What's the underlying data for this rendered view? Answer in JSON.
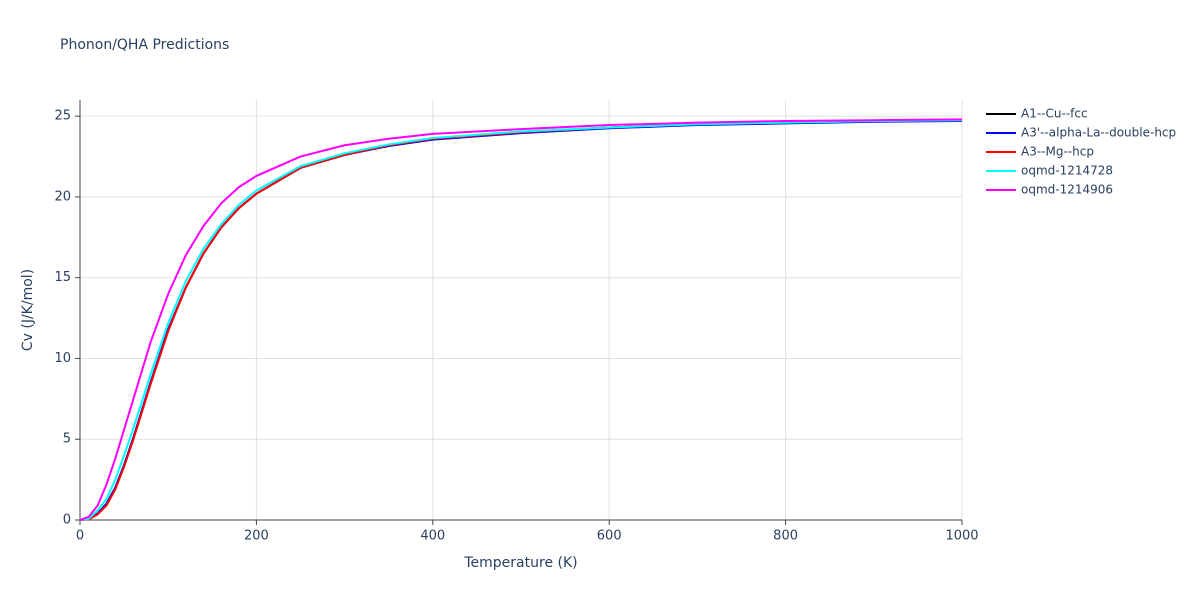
{
  "chart_data": {
    "type": "line",
    "title": "Phonon/QHA Predictions",
    "x_label": "Temperature (K)",
    "y_label": "Cv (J/K/mol)",
    "x": [
      0,
      10,
      20,
      30,
      40,
      50,
      60,
      80,
      100,
      120,
      140,
      160,
      180,
      200,
      250,
      300,
      350,
      400,
      500,
      600,
      700,
      800,
      900,
      1000
    ],
    "series": [
      {
        "name": "A1--Cu--fcc",
        "color": "#000000",
        "values": [
          0,
          0.05,
          0.4,
          1.0,
          2.0,
          3.4,
          5.0,
          8.5,
          11.8,
          14.4,
          16.5,
          18.1,
          19.3,
          20.2,
          21.8,
          22.6,
          23.2,
          23.6,
          24.0,
          24.3,
          24.5,
          24.6,
          24.7,
          24.75
        ]
      },
      {
        "name": "A3'--alpha-La--double-hcp",
        "color": "#0000ff",
        "values": [
          0,
          0.05,
          0.4,
          1.0,
          2.0,
          3.4,
          5.0,
          8.5,
          11.8,
          14.4,
          16.5,
          18.1,
          19.3,
          20.2,
          21.8,
          22.6,
          23.15,
          23.55,
          23.95,
          24.25,
          24.45,
          24.55,
          24.65,
          24.7
        ]
      },
      {
        "name": "A3--Mg--hcp",
        "color": "#ff0000",
        "values": [
          0,
          0.04,
          0.35,
          0.9,
          1.9,
          3.3,
          4.9,
          8.4,
          11.7,
          14.4,
          16.5,
          18.1,
          19.3,
          20.2,
          21.8,
          22.6,
          23.2,
          23.6,
          24.0,
          24.3,
          24.5,
          24.6,
          24.7,
          24.75
        ]
      },
      {
        "name": "oqmd-1214728",
        "color": "#00ffff",
        "values": [
          0,
          0.08,
          0.6,
          1.3,
          2.5,
          4.0,
          5.6,
          9.0,
          12.2,
          14.8,
          16.8,
          18.3,
          19.5,
          20.4,
          21.9,
          22.7,
          23.25,
          23.65,
          24.05,
          24.3,
          24.5,
          24.6,
          24.7,
          24.75
        ]
      },
      {
        "name": "oqmd-1214906",
        "color": "#ff00ff",
        "values": [
          0,
          0.2,
          0.9,
          2.2,
          3.8,
          5.6,
          7.4,
          11.0,
          14.0,
          16.4,
          18.2,
          19.6,
          20.6,
          21.3,
          22.5,
          23.2,
          23.6,
          23.9,
          24.2,
          24.45,
          24.6,
          24.7,
          24.75,
          24.8
        ]
      }
    ],
    "xlim": [
      0,
      1000
    ],
    "xticks": [
      0,
      200,
      400,
      600,
      800,
      1000
    ],
    "ylim": [
      0,
      26
    ],
    "yticks": [
      0,
      5,
      10,
      15,
      20,
      25
    ],
    "grid": true
  }
}
